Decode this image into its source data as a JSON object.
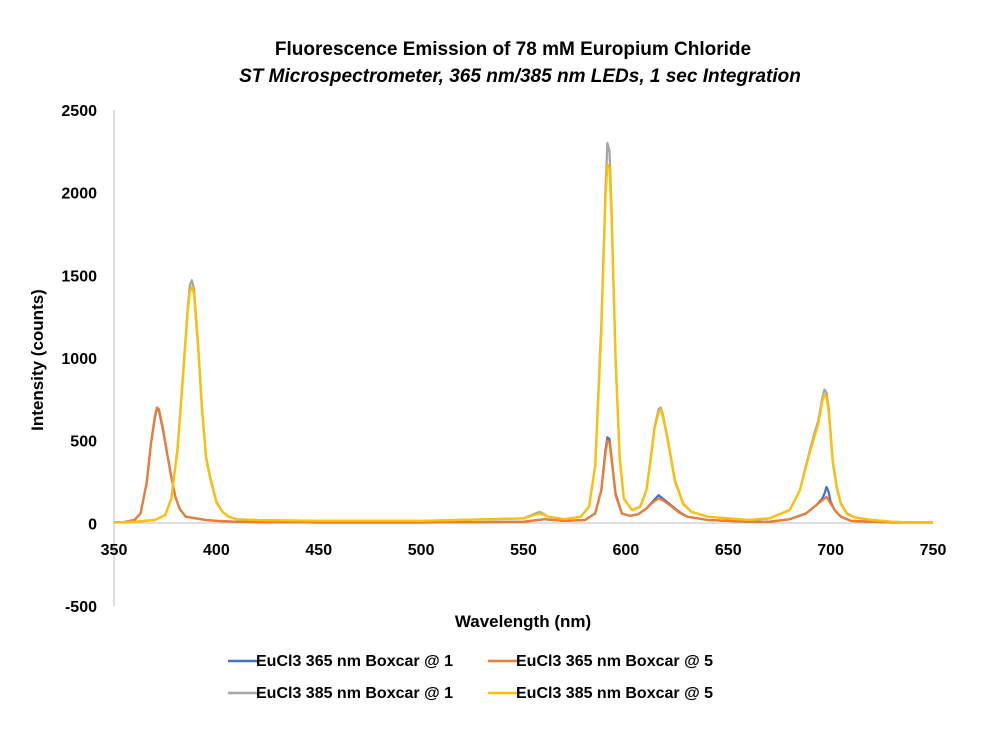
{
  "chart_data": {
    "type": "line",
    "title": "Fluorescence Emission of 78 mM Europium Chloride",
    "subtitle": "ST Microspectrometer, 365 nm/385 nm LEDs, 1 sec Integration",
    "xlabel": "Wavelength (nm)",
    "ylabel": "Intensity (counts)",
    "xlim": [
      350,
      750
    ],
    "ylim": [
      -500,
      2500
    ],
    "x_ticks": [
      "350",
      "400",
      "450",
      "500",
      "550",
      "600",
      "650",
      "700",
      "750"
    ],
    "y_ticks": [
      "2500",
      "2000",
      "1500",
      "1000",
      "500",
      "0",
      "-500"
    ],
    "grid": false,
    "legend_position": "bottom",
    "series": [
      {
        "name": "EuCl3 365 nm Boxcar @ 1",
        "color": "#4472C4",
        "points": [
          [
            350,
            5
          ],
          [
            355,
            8
          ],
          [
            360,
            20
          ],
          [
            363,
            60
          ],
          [
            366,
            250
          ],
          [
            368,
            480
          ],
          [
            370,
            640
          ],
          [
            371,
            700
          ],
          [
            372,
            680
          ],
          [
            374,
            560
          ],
          [
            376,
            420
          ],
          [
            378,
            280
          ],
          [
            380,
            160
          ],
          [
            382,
            90
          ],
          [
            385,
            40
          ],
          [
            390,
            30
          ],
          [
            395,
            20
          ],
          [
            400,
            15
          ],
          [
            410,
            10
          ],
          [
            420,
            8
          ],
          [
            450,
            5
          ],
          [
            500,
            5
          ],
          [
            550,
            10
          ],
          [
            560,
            25
          ],
          [
            570,
            15
          ],
          [
            580,
            20
          ],
          [
            585,
            60
          ],
          [
            588,
            200
          ],
          [
            590,
            440
          ],
          [
            591,
            520
          ],
          [
            592,
            510
          ],
          [
            593,
            400
          ],
          [
            595,
            180
          ],
          [
            598,
            60
          ],
          [
            602,
            45
          ],
          [
            606,
            55
          ],
          [
            610,
            90
          ],
          [
            613,
            130
          ],
          [
            616,
            170
          ],
          [
            618,
            150
          ],
          [
            622,
            110
          ],
          [
            626,
            70
          ],
          [
            630,
            40
          ],
          [
            640,
            20
          ],
          [
            650,
            15
          ],
          [
            660,
            10
          ],
          [
            670,
            10
          ],
          [
            680,
            25
          ],
          [
            688,
            60
          ],
          [
            693,
            110
          ],
          [
            696,
            150
          ],
          [
            697,
            180
          ],
          [
            698,
            220
          ],
          [
            699,
            190
          ],
          [
            700,
            130
          ],
          [
            702,
            80
          ],
          [
            705,
            40
          ],
          [
            710,
            15
          ],
          [
            720,
            10
          ],
          [
            730,
            5
          ],
          [
            740,
            5
          ],
          [
            750,
            5
          ]
        ]
      },
      {
        "name": "EuCl3 365 nm Boxcar @ 5",
        "color": "#ED7D31",
        "points": [
          [
            350,
            5
          ],
          [
            355,
            8
          ],
          [
            360,
            20
          ],
          [
            363,
            60
          ],
          [
            366,
            250
          ],
          [
            368,
            480
          ],
          [
            370,
            650
          ],
          [
            371,
            700
          ],
          [
            372,
            690
          ],
          [
            374,
            570
          ],
          [
            376,
            420
          ],
          [
            378,
            280
          ],
          [
            380,
            160
          ],
          [
            382,
            90
          ],
          [
            385,
            40
          ],
          [
            390,
            30
          ],
          [
            395,
            20
          ],
          [
            400,
            15
          ],
          [
            410,
            10
          ],
          [
            420,
            8
          ],
          [
            450,
            5
          ],
          [
            500,
            5
          ],
          [
            550,
            10
          ],
          [
            560,
            25
          ],
          [
            570,
            15
          ],
          [
            580,
            20
          ],
          [
            585,
            60
          ],
          [
            588,
            200
          ],
          [
            590,
            420
          ],
          [
            591,
            500
          ],
          [
            592,
            490
          ],
          [
            593,
            390
          ],
          [
            595,
            170
          ],
          [
            598,
            60
          ],
          [
            602,
            45
          ],
          [
            606,
            55
          ],
          [
            610,
            90
          ],
          [
            613,
            125
          ],
          [
            616,
            150
          ],
          [
            618,
            140
          ],
          [
            622,
            105
          ],
          [
            626,
            65
          ],
          [
            630,
            40
          ],
          [
            640,
            20
          ],
          [
            650,
            15
          ],
          [
            660,
            10
          ],
          [
            670,
            10
          ],
          [
            680,
            25
          ],
          [
            688,
            60
          ],
          [
            693,
            110
          ],
          [
            696,
            140
          ],
          [
            698,
            160
          ],
          [
            700,
            120
          ],
          [
            702,
            80
          ],
          [
            705,
            40
          ],
          [
            710,
            15
          ],
          [
            720,
            10
          ],
          [
            730,
            5
          ],
          [
            740,
            5
          ],
          [
            750,
            5
          ]
        ]
      },
      {
        "name": "EuCl3 385 nm Boxcar @ 1",
        "color": "#A5A5A5",
        "points": [
          [
            350,
            5
          ],
          [
            360,
            10
          ],
          [
            370,
            20
          ],
          [
            375,
            50
          ],
          [
            378,
            150
          ],
          [
            381,
            450
          ],
          [
            384,
            950
          ],
          [
            386,
            1300
          ],
          [
            387,
            1440
          ],
          [
            388,
            1470
          ],
          [
            389,
            1420
          ],
          [
            391,
            1100
          ],
          [
            393,
            700
          ],
          [
            395,
            400
          ],
          [
            397,
            280
          ],
          [
            400,
            130
          ],
          [
            403,
            70
          ],
          [
            406,
            40
          ],
          [
            410,
            25
          ],
          [
            420,
            20
          ],
          [
            450,
            15
          ],
          [
            500,
            15
          ],
          [
            550,
            30
          ],
          [
            555,
            55
          ],
          [
            558,
            70
          ],
          [
            562,
            40
          ],
          [
            570,
            25
          ],
          [
            578,
            40
          ],
          [
            582,
            100
          ],
          [
            585,
            350
          ],
          [
            588,
            1200
          ],
          [
            590,
            2000
          ],
          [
            591,
            2300
          ],
          [
            592,
            2250
          ],
          [
            593,
            1900
          ],
          [
            595,
            1000
          ],
          [
            597,
            400
          ],
          [
            599,
            150
          ],
          [
            603,
            80
          ],
          [
            607,
            100
          ],
          [
            610,
            200
          ],
          [
            612,
            380
          ],
          [
            614,
            580
          ],
          [
            616,
            690
          ],
          [
            617,
            700
          ],
          [
            618,
            660
          ],
          [
            620,
            540
          ],
          [
            622,
            400
          ],
          [
            624,
            260
          ],
          [
            628,
            120
          ],
          [
            632,
            70
          ],
          [
            640,
            40
          ],
          [
            650,
            30
          ],
          [
            660,
            20
          ],
          [
            670,
            30
          ],
          [
            680,
            80
          ],
          [
            685,
            200
          ],
          [
            689,
            400
          ],
          [
            692,
            540
          ],
          [
            694,
            620
          ],
          [
            696,
            760
          ],
          [
            697,
            810
          ],
          [
            698,
            790
          ],
          [
            699,
            700
          ],
          [
            700,
            550
          ],
          [
            701,
            380
          ],
          [
            703,
            220
          ],
          [
            705,
            120
          ],
          [
            708,
            60
          ],
          [
            712,
            35
          ],
          [
            720,
            20
          ],
          [
            730,
            10
          ],
          [
            740,
            5
          ],
          [
            750,
            5
          ]
        ]
      },
      {
        "name": "EuCl3 385 nm Boxcar @ 5",
        "color": "#FFC000",
        "points": [
          [
            350,
            5
          ],
          [
            360,
            10
          ],
          [
            370,
            20
          ],
          [
            375,
            50
          ],
          [
            378,
            150
          ],
          [
            381,
            440
          ],
          [
            384,
            930
          ],
          [
            386,
            1280
          ],
          [
            387,
            1400
          ],
          [
            388,
            1430
          ],
          [
            389,
            1390
          ],
          [
            391,
            1080
          ],
          [
            393,
            680
          ],
          [
            395,
            390
          ],
          [
            397,
            270
          ],
          [
            400,
            125
          ],
          [
            403,
            70
          ],
          [
            406,
            40
          ],
          [
            410,
            25
          ],
          [
            420,
            20
          ],
          [
            450,
            15
          ],
          [
            500,
            15
          ],
          [
            550,
            30
          ],
          [
            555,
            50
          ],
          [
            558,
            60
          ],
          [
            562,
            40
          ],
          [
            570,
            25
          ],
          [
            578,
            40
          ],
          [
            582,
            100
          ],
          [
            585,
            340
          ],
          [
            588,
            1150
          ],
          [
            590,
            1950
          ],
          [
            591,
            2170
          ],
          [
            592,
            2150
          ],
          [
            593,
            1850
          ],
          [
            595,
            980
          ],
          [
            597,
            390
          ],
          [
            599,
            150
          ],
          [
            603,
            80
          ],
          [
            607,
            100
          ],
          [
            610,
            200
          ],
          [
            612,
            370
          ],
          [
            614,
            570
          ],
          [
            616,
            670
          ],
          [
            617,
            690
          ],
          [
            618,
            650
          ],
          [
            620,
            530
          ],
          [
            622,
            390
          ],
          [
            624,
            250
          ],
          [
            628,
            115
          ],
          [
            632,
            70
          ],
          [
            640,
            40
          ],
          [
            650,
            30
          ],
          [
            660,
            20
          ],
          [
            670,
            30
          ],
          [
            680,
            80
          ],
          [
            685,
            200
          ],
          [
            689,
            390
          ],
          [
            692,
            520
          ],
          [
            694,
            600
          ],
          [
            696,
            740
          ],
          [
            697,
            780
          ],
          [
            698,
            760
          ],
          [
            699,
            680
          ],
          [
            700,
            530
          ],
          [
            701,
            370
          ],
          [
            703,
            210
          ],
          [
            705,
            115
          ],
          [
            708,
            55
          ],
          [
            712,
            35
          ],
          [
            720,
            20
          ],
          [
            730,
            10
          ],
          [
            740,
            5
          ],
          [
            750,
            5
          ]
        ]
      }
    ]
  }
}
